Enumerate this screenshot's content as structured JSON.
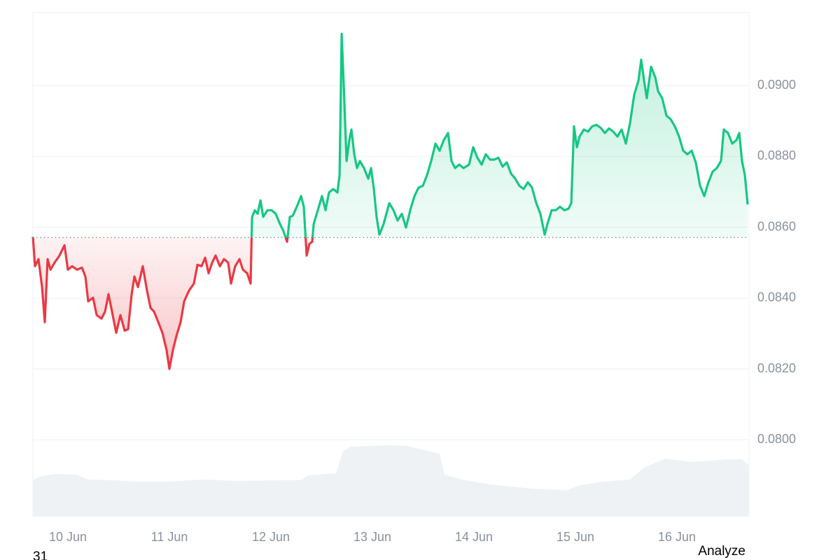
{
  "chart_data": {
    "type": "line",
    "x": [
      9.655,
      9.676,
      9.71,
      9.745,
      9.772,
      9.8,
      9.828,
      9.869,
      9.917,
      9.966,
      10.0,
      10.041,
      10.09,
      10.138,
      10.172,
      10.2,
      10.248,
      10.283,
      10.331,
      10.366,
      10.4,
      10.434,
      10.476,
      10.517,
      10.559,
      10.593,
      10.628,
      10.655,
      10.69,
      10.738,
      10.779,
      10.814,
      10.848,
      10.89,
      10.931,
      10.972,
      11.0,
      11.034,
      11.069,
      11.11,
      11.145,
      11.193,
      11.241,
      11.276,
      11.317,
      11.352,
      11.386,
      11.421,
      11.455,
      11.497,
      11.538,
      11.579,
      11.607,
      11.648,
      11.69,
      11.724,
      11.766,
      11.8,
      11.814,
      11.841,
      11.869,
      11.897,
      11.924,
      11.966,
      12.007,
      12.048,
      12.083,
      12.124,
      12.159,
      12.186,
      12.214,
      12.255,
      12.297,
      12.324,
      12.352,
      12.379,
      12.407,
      12.421,
      12.462,
      12.503,
      12.538,
      12.572,
      12.614,
      12.655,
      12.676,
      12.697,
      12.717,
      12.745,
      12.772,
      12.793,
      12.821,
      12.848,
      12.876,
      12.917,
      12.959,
      12.986,
      13.014,
      13.041,
      13.069,
      13.11,
      13.166,
      13.207,
      13.248,
      13.29,
      13.331,
      13.372,
      13.414,
      13.455,
      13.497,
      13.538,
      13.579,
      13.621,
      13.662,
      13.703,
      13.745,
      13.779,
      13.814,
      13.855,
      13.897,
      13.952,
      13.993,
      14.034,
      14.076,
      14.117,
      14.159,
      14.2,
      14.241,
      14.283,
      14.324,
      14.366,
      14.407,
      14.448,
      14.49,
      14.531,
      14.572,
      14.614,
      14.655,
      14.697,
      14.724,
      14.766,
      14.807,
      14.848,
      14.89,
      14.931,
      14.959,
      14.986,
      15.014,
      15.041,
      15.083,
      15.124,
      15.166,
      15.207,
      15.248,
      15.29,
      15.331,
      15.372,
      15.414,
      15.455,
      15.497,
      15.538,
      15.579,
      15.621,
      15.648,
      15.676,
      15.703,
      15.745,
      15.786,
      15.814,
      15.855,
      15.897,
      15.938,
      15.979,
      16.021,
      16.062,
      16.103,
      16.145,
      16.186,
      16.228,
      16.269,
      16.31,
      16.352,
      16.393,
      16.434,
      16.462,
      16.503,
      16.545,
      16.586,
      16.614,
      16.641,
      16.669,
      16.697
    ],
    "values": [
      0.08573,
      0.0849,
      0.0851,
      0.08431,
      0.08332,
      0.0851,
      0.0848,
      0.085,
      0.0852,
      0.08549,
      0.0848,
      0.0849,
      0.0848,
      0.08486,
      0.08461,
      0.08391,
      0.08401,
      0.08352,
      0.08342,
      0.08362,
      0.08411,
      0.08362,
      0.08302,
      0.08352,
      0.08308,
      0.08312,
      0.08411,
      0.08461,
      0.08431,
      0.0849,
      0.08421,
      0.08372,
      0.08362,
      0.08332,
      0.08302,
      0.08253,
      0.082,
      0.08253,
      0.08293,
      0.08332,
      0.08391,
      0.08421,
      0.08441,
      0.08494,
      0.0849,
      0.08514,
      0.0847,
      0.085,
      0.0852,
      0.0849,
      0.0851,
      0.085,
      0.08441,
      0.0849,
      0.0851,
      0.0848,
      0.0847,
      0.08441,
      0.08629,
      0.08648,
      0.08638,
      0.08676,
      0.08629,
      0.08648,
      0.08648,
      0.08638,
      0.08613,
      0.08589,
      0.08559,
      0.08629,
      0.08632,
      0.08658,
      0.08688,
      0.08658,
      0.0852,
      0.08553,
      0.08559,
      0.08609,
      0.08648,
      0.08688,
      0.08648,
      0.08698,
      0.08708,
      0.08698,
      0.08747,
      0.09146,
      0.09004,
      0.08787,
      0.08846,
      0.08876,
      0.08806,
      0.08767,
      0.08787,
      0.08767,
      0.08737,
      0.08767,
      0.08708,
      0.08629,
      0.08579,
      0.08609,
      0.08668,
      0.08648,
      0.08619,
      0.08638,
      0.08599,
      0.08648,
      0.08688,
      0.08712,
      0.08717,
      0.08747,
      0.08787,
      0.08836,
      0.08816,
      0.08846,
      0.08866,
      0.08787,
      0.08767,
      0.08777,
      0.08767,
      0.08777,
      0.08826,
      0.08796,
      0.08777,
      0.08806,
      0.08791,
      0.08791,
      0.08796,
      0.08771,
      0.08783,
      0.08751,
      0.08737,
      0.08717,
      0.08708,
      0.08727,
      0.08712,
      0.08668,
      0.08638,
      0.08579,
      0.08609,
      0.08648,
      0.08648,
      0.08658,
      0.08648,
      0.08652,
      0.08668,
      0.08885,
      0.08826,
      0.08856,
      0.08876,
      0.0887,
      0.08885,
      0.08889,
      0.08881,
      0.08866,
      0.08879,
      0.0887,
      0.08856,
      0.08876,
      0.08836,
      0.08895,
      0.08974,
      0.09014,
      0.09073,
      0.09014,
      0.08964,
      0.09053,
      0.09024,
      0.08984,
      0.08964,
      0.08915,
      0.08905,
      0.08885,
      0.08856,
      0.08816,
      0.08806,
      0.08816,
      0.08783,
      0.08717,
      0.08688,
      0.08727,
      0.08757,
      0.08767,
      0.08787,
      0.08876,
      0.08866,
      0.08836,
      0.08846,
      0.08866,
      0.08787,
      0.08747,
      0.08664
    ],
    "baseline": 0.08571,
    "color_above": "#16c784",
    "color_below": "#ea3943",
    "xlim": [
      9.655,
      16.71
    ],
    "xticks": [
      {
        "value": 10,
        "label": "10 Jun"
      },
      {
        "value": 11,
        "label": "11 Jun"
      },
      {
        "value": 12,
        "label": "12 Jun"
      },
      {
        "value": 13,
        "label": "13 Jun"
      },
      {
        "value": 14,
        "label": "14 Jun"
      },
      {
        "value": 15,
        "label": "15 Jun"
      },
      {
        "value": 16,
        "label": "16 Jun"
      }
    ],
    "ylim": [
      0.07783,
      0.09206
    ],
    "yticks": [
      {
        "value": 0.08,
        "label": "0.0800"
      },
      {
        "value": 0.082,
        "label": "0.0820"
      },
      {
        "value": 0.084,
        "label": "0.0840"
      },
      {
        "value": 0.086,
        "label": "0.0860"
      },
      {
        "value": 0.088,
        "label": "0.0880"
      },
      {
        "value": 0.09,
        "label": "0.0900"
      }
    ],
    "grid": true
  },
  "page": {
    "cut_label": "31",
    "analyze_button": "Analyze"
  }
}
